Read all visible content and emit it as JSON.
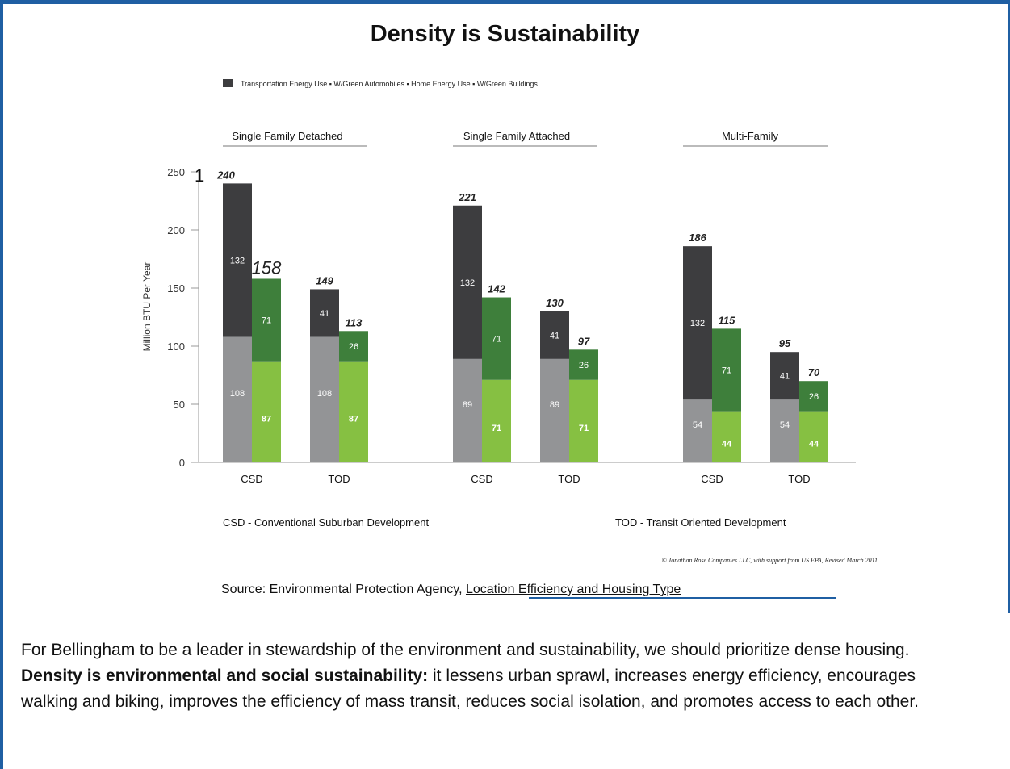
{
  "title": "Density is Sustainability",
  "legend_text": "Transportation Energy Use ▪ W/Green Automobiles ▪ Home Energy Use ▪ W/Green Buildings",
  "stray_digit": "1",
  "footnote_left": "CSD - Conventional Suburban Development",
  "footnote_right": "TOD - Transit Oriented Development",
  "copyright": "© Jonathan Rose Companies LLC, with support from US EPA, Revised March 2011",
  "source": {
    "prefix": "Source: Environmental Protection Agency, ",
    "link": "Location Efficiency and Housing Type"
  },
  "paragraph": {
    "part1": "For Bellingham to be a leader in stewardship of the environment and sustainability, we should prioritize dense housing. ",
    "bold": "Density is environmental and social sustainability:",
    "part2": " it lessens urban sprawl, increases energy efficiency, encourages walking and biking, improves the efficiency of mass transit, reduces social isolation, and promotes access to each other."
  },
  "colors": {
    "transportation": "#3d3d3f",
    "green_auto": "#3e7f3b",
    "home": "#939496",
    "green_buildings": "#86c042",
    "border": "#1f5fa3"
  },
  "chart_data": {
    "type": "bar",
    "stacked": true,
    "ylabel": "Million BTU Per Year",
    "ylim": [
      0,
      250
    ],
    "yticks": [
      0,
      50,
      100,
      150,
      200,
      250
    ],
    "groups": [
      {
        "name": "Single Family Detached",
        "bars": [
          {
            "category": "CSD",
            "type": "standard",
            "top": 132,
            "bottom": 108,
            "total": "240"
          },
          {
            "category": "CSD",
            "type": "green",
            "top": 71,
            "bottom": 87,
            "total": "158"
          },
          {
            "category": "TOD",
            "type": "standard",
            "top": 41,
            "bottom": 108,
            "total": "149"
          },
          {
            "category": "TOD",
            "type": "green",
            "top": 26,
            "bottom": 87,
            "total": "113"
          }
        ]
      },
      {
        "name": "Single Family Attached",
        "bars": [
          {
            "category": "CSD",
            "type": "standard",
            "top": 132,
            "bottom": 89,
            "total": "221"
          },
          {
            "category": "CSD",
            "type": "green",
            "top": 71,
            "bottom": 71,
            "total": "142"
          },
          {
            "category": "TOD",
            "type": "standard",
            "top": 41,
            "bottom": 89,
            "total": "130"
          },
          {
            "category": "TOD",
            "type": "green",
            "top": 26,
            "bottom": 71,
            "total": "97"
          }
        ]
      },
      {
        "name": "Multi-Family",
        "bars": [
          {
            "category": "CSD",
            "type": "standard",
            "top": 132,
            "bottom": 54,
            "total": "186"
          },
          {
            "category": "CSD",
            "type": "green",
            "top": 71,
            "bottom": 44,
            "total": "115"
          },
          {
            "category": "TOD",
            "type": "standard",
            "top": 41,
            "bottom": 54,
            "total": "95"
          },
          {
            "category": "TOD",
            "type": "green",
            "top": 26,
            "bottom": 44,
            "total": "70"
          }
        ]
      }
    ],
    "x_labels": [
      "CSD",
      "TOD",
      "CSD",
      "TOD",
      "CSD",
      "TOD"
    ]
  }
}
